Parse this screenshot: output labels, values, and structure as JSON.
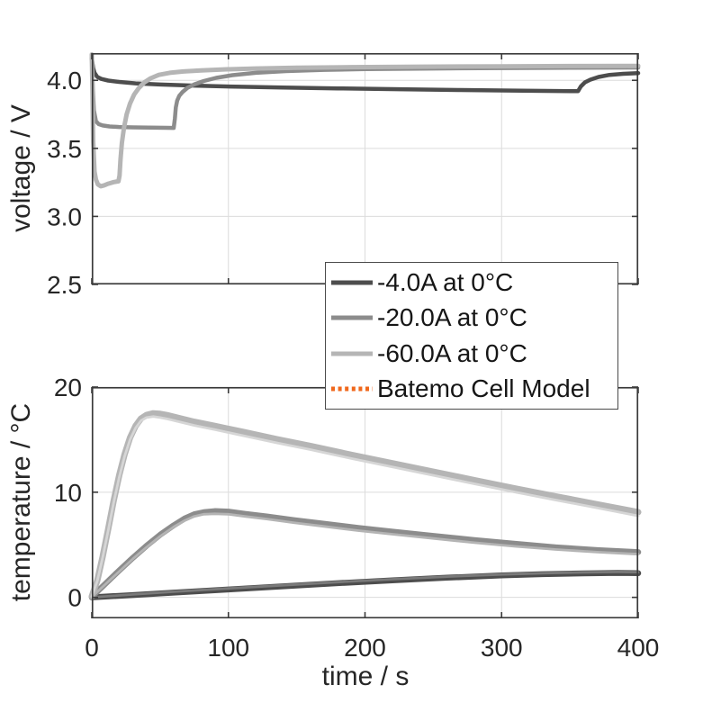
{
  "colors": {
    "dark_gray": "#4d4d4d",
    "medium_gray": "#8c8c8c",
    "light_gray": "#b5b5b5",
    "model_dark": "#7a7a7a",
    "model_medium": "#b4b4b4",
    "model_light": "#d6d6d6",
    "model_orange": "#f0681c",
    "grid": "#dcdcdc",
    "axis": "#3a3a3a",
    "text": "#262626"
  },
  "legend": {
    "items": [
      {
        "label": "-4.0A at 0°C",
        "color": "#4d4d4d",
        "style": "solid"
      },
      {
        "label": "-20.0A at 0°C",
        "color": "#8c8c8c",
        "style": "solid"
      },
      {
        "label": "-60.0A at 0°C",
        "color": "#b5b5b5",
        "style": "solid"
      },
      {
        "label": "Batemo Cell Model",
        "color": "#f0681c",
        "style": "dotted"
      }
    ]
  },
  "chart_data": [
    {
      "type": "line",
      "title": "",
      "xlabel": "",
      "ylabel": "voltage / V",
      "xlim": [
        0,
        400
      ],
      "ylim": [
        2.5,
        4.2
      ],
      "grid": true,
      "legend_position": "below-right",
      "xticks": [
        {
          "value": 0
        },
        {
          "value": 100
        },
        {
          "value": 200
        },
        {
          "value": 300
        },
        {
          "value": 400
        }
      ],
      "yticks": [
        {
          "value": 2.5,
          "label": "2.5"
        },
        {
          "value": 3.0,
          "label": "3.0"
        },
        {
          "value": 3.5,
          "label": "3.5"
        },
        {
          "value": 4.0,
          "label": "4.0"
        }
      ],
      "series": [
        {
          "name": "-4.0A at 0°C",
          "color": "#4d4d4d",
          "width": 4.5,
          "points": [
            [
              0,
              4.16
            ],
            [
              1,
              4.09
            ],
            [
              2,
              4.055
            ],
            [
              4,
              4.025
            ],
            [
              7,
              4.01
            ],
            [
              12,
              3.998
            ],
            [
              20,
              3.988
            ],
            [
              32,
              3.978
            ],
            [
              50,
              3.969
            ],
            [
              75,
              3.961
            ],
            [
              105,
              3.953
            ],
            [
              140,
              3.947
            ],
            [
              180,
              3.941
            ],
            [
              225,
              3.935
            ],
            [
              270,
              3.929
            ],
            [
              315,
              3.924
            ],
            [
              350,
              3.921
            ],
            [
              356,
              3.92
            ],
            [
              358,
              3.955
            ],
            [
              361,
              3.985
            ],
            [
              365,
              4.005
            ],
            [
              371,
              4.025
            ],
            [
              379,
              4.04
            ],
            [
              389,
              4.048
            ],
            [
              400,
              4.053
            ]
          ]
        },
        {
          "name": "-20.0A at 0°C",
          "color": "#8c8c8c",
          "width": 4.5,
          "points": [
            [
              0,
              4.17
            ],
            [
              0.7,
              3.95
            ],
            [
              1.5,
              3.78
            ],
            [
              3,
              3.7
            ],
            [
              5,
              3.678
            ],
            [
              8,
              3.668
            ],
            [
              13,
              3.661
            ],
            [
              20,
              3.657
            ],
            [
              30,
              3.654
            ],
            [
              42,
              3.652
            ],
            [
              55,
              3.651
            ],
            [
              60,
              3.65
            ],
            [
              60.8,
              3.72
            ],
            [
              61.5,
              3.8
            ],
            [
              62.5,
              3.85
            ],
            [
              64,
              3.885
            ],
            [
              66.5,
              3.915
            ],
            [
              70,
              3.945
            ],
            [
              75,
              3.97
            ],
            [
              82,
              3.995
            ],
            [
              91,
              4.018
            ],
            [
              103,
              4.038
            ],
            [
              120,
              4.055
            ],
            [
              142,
              4.068
            ],
            [
              170,
              4.077
            ],
            [
              200,
              4.082
            ],
            [
              250,
              4.087
            ],
            [
              300,
              4.09
            ],
            [
              350,
              4.092
            ],
            [
              400,
              4.094
            ]
          ]
        },
        {
          "name": "-60.0A at 0°C",
          "color": "#b5b5b5",
          "width": 5,
          "points": [
            [
              0,
              4.19
            ],
            [
              0.5,
              3.9
            ],
            [
              1,
              3.55
            ],
            [
              2,
              3.33
            ],
            [
              3,
              3.27
            ],
            [
              4.5,
              3.235
            ],
            [
              6.5,
              3.222
            ],
            [
              9,
              3.228
            ],
            [
              12,
              3.24
            ],
            [
              16,
              3.252
            ],
            [
              19.5,
              3.258
            ],
            [
              20.3,
              3.3
            ],
            [
              21,
              3.42
            ],
            [
              22,
              3.54
            ],
            [
              23.5,
              3.65
            ],
            [
              25.5,
              3.75
            ],
            [
              28,
              3.83
            ],
            [
              31,
              3.895
            ],
            [
              34.5,
              3.945
            ],
            [
              38.5,
              3.985
            ],
            [
              43,
              4.015
            ],
            [
              49,
              4.04
            ],
            [
              57,
              4.055
            ],
            [
              67,
              4.065
            ],
            [
              80,
              4.073
            ],
            [
              97,
              4.08
            ],
            [
              120,
              4.087
            ],
            [
              150,
              4.092
            ],
            [
              190,
              4.097
            ],
            [
              240,
              4.1
            ],
            [
              300,
              4.103
            ],
            [
              350,
              4.105
            ],
            [
              400,
              4.106
            ]
          ]
        }
      ]
    },
    {
      "type": "line",
      "title": "",
      "xlabel": "time / s",
      "ylabel": "temperature / °C",
      "xlim": [
        0,
        400
      ],
      "ylim": [
        -2,
        20
      ],
      "grid": true,
      "xticks": [
        {
          "value": 0,
          "label": "0"
        },
        {
          "value": 100,
          "label": "100"
        },
        {
          "value": 200,
          "label": "200"
        },
        {
          "value": 300,
          "label": "300"
        },
        {
          "value": 400,
          "label": "400"
        }
      ],
      "yticks": [
        {
          "value": 0,
          "label": "0"
        },
        {
          "value": 10,
          "label": "10"
        },
        {
          "value": 20,
          "label": "20"
        }
      ],
      "series": [
        {
          "name": "-4.0A at 0°C",
          "color": "#4d4d4d",
          "width": 6.5,
          "points": [
            [
              0,
              0
            ],
            [
              30,
              0.22
            ],
            [
              60,
              0.45
            ],
            [
              100,
              0.75
            ],
            [
              140,
              1.05
            ],
            [
              180,
              1.35
            ],
            [
              220,
              1.62
            ],
            [
              260,
              1.87
            ],
            [
              300,
              2.08
            ],
            [
              330,
              2.2
            ],
            [
              360,
              2.28
            ],
            [
              385,
              2.32
            ],
            [
              400,
              2.3
            ]
          ]
        },
        {
          "name": "Batemo Cell Model (-4.0A)",
          "color": "#7a7a7a",
          "width": 2.8,
          "points": [
            [
              0,
              0
            ],
            [
              30,
              0.28
            ],
            [
              60,
              0.53
            ],
            [
              100,
              0.85
            ],
            [
              140,
              1.15
            ],
            [
              180,
              1.45
            ],
            [
              220,
              1.72
            ],
            [
              260,
              1.97
            ],
            [
              300,
              2.18
            ],
            [
              330,
              2.3
            ],
            [
              360,
              2.38
            ],
            [
              385,
              2.42
            ],
            [
              400,
              2.4
            ]
          ]
        },
        {
          "name": "-20.0A at 0°C",
          "color": "#8c8c8c",
          "width": 6.5,
          "points": [
            [
              0,
              0.05
            ],
            [
              10,
              1.3
            ],
            [
              20,
              2.55
            ],
            [
              30,
              3.75
            ],
            [
              40,
              4.9
            ],
            [
              50,
              5.95
            ],
            [
              60,
              6.85
            ],
            [
              68,
              7.5
            ],
            [
              75,
              7.9
            ],
            [
              82,
              8.1
            ],
            [
              90,
              8.2
            ],
            [
              100,
              8.15
            ],
            [
              112,
              7.95
            ],
            [
              128,
              7.7
            ],
            [
              148,
              7.35
            ],
            [
              170,
              7.0
            ],
            [
              195,
              6.6
            ],
            [
              220,
              6.25
            ],
            [
              250,
              5.85
            ],
            [
              280,
              5.45
            ],
            [
              310,
              5.1
            ],
            [
              340,
              4.75
            ],
            [
              370,
              4.5
            ],
            [
              400,
              4.3
            ]
          ]
        },
        {
          "name": "Batemo Cell Model (-20.0A)",
          "color": "#b4b4b4",
          "width": 2.8,
          "points": [
            [
              0,
              0.05
            ],
            [
              10,
              1.25
            ],
            [
              20,
              2.45
            ],
            [
              30,
              3.65
            ],
            [
              40,
              4.75
            ],
            [
              50,
              5.8
            ],
            [
              60,
              6.7
            ],
            [
              68,
              7.3
            ],
            [
              75,
              7.7
            ],
            [
              82,
              7.9
            ],
            [
              90,
              7.95
            ],
            [
              100,
              7.9
            ],
            [
              112,
              7.7
            ],
            [
              128,
              7.45
            ],
            [
              148,
              7.1
            ],
            [
              170,
              6.75
            ],
            [
              195,
              6.35
            ],
            [
              220,
              6.0
            ],
            [
              250,
              5.6
            ],
            [
              280,
              5.2
            ],
            [
              310,
              4.85
            ],
            [
              340,
              4.55
            ],
            [
              370,
              4.3
            ],
            [
              400,
              4.1
            ]
          ]
        },
        {
          "name": "-60.0A at 0°C",
          "color": "#b5b5b5",
          "width": 7,
          "points": [
            [
              0,
              0.1
            ],
            [
              4,
              1.6
            ],
            [
              8,
              3.9
            ],
            [
              12,
              6.5
            ],
            [
              16,
              9.2
            ],
            [
              20,
              11.6
            ],
            [
              24,
              13.6
            ],
            [
              28,
              15.2
            ],
            [
              32,
              16.3
            ],
            [
              36,
              17.0
            ],
            [
              40,
              17.35
            ],
            [
              45,
              17.5
            ],
            [
              50,
              17.45
            ],
            [
              56,
              17.3
            ],
            [
              64,
              17.05
            ],
            [
              75,
              16.7
            ],
            [
              90,
              16.3
            ],
            [
              110,
              15.75
            ],
            [
              135,
              15.05
            ],
            [
              160,
              14.4
            ],
            [
              190,
              13.55
            ],
            [
              220,
              12.75
            ],
            [
              250,
              11.95
            ],
            [
              280,
              11.15
            ],
            [
              310,
              10.35
            ],
            [
              340,
              9.6
            ],
            [
              370,
              8.85
            ],
            [
              400,
              8.1
            ]
          ]
        },
        {
          "name": "Batemo Cell Model (-60.0A)",
          "color": "#d6d6d6",
          "width": 2.8,
          "points": [
            [
              0,
              0.1
            ],
            [
              4,
              1.55
            ],
            [
              8,
              3.8
            ],
            [
              12,
              6.35
            ],
            [
              16,
              9.0
            ],
            [
              20,
              11.4
            ],
            [
              24,
              13.4
            ],
            [
              28,
              15.0
            ],
            [
              32,
              16.1
            ],
            [
              36,
              16.8
            ],
            [
              40,
              17.1
            ],
            [
              45,
              17.2
            ],
            [
              50,
              17.1
            ],
            [
              56,
              16.95
            ],
            [
              64,
              16.7
            ],
            [
              75,
              16.35
            ],
            [
              90,
              15.95
            ],
            [
              110,
              15.4
            ],
            [
              135,
              14.7
            ],
            [
              160,
              14.05
            ],
            [
              190,
              13.2
            ],
            [
              220,
              12.4
            ],
            [
              250,
              11.6
            ],
            [
              280,
              10.8
            ],
            [
              310,
              10.0
            ],
            [
              340,
              9.25
            ],
            [
              370,
              8.5
            ],
            [
              400,
              7.75
            ]
          ]
        }
      ]
    }
  ]
}
